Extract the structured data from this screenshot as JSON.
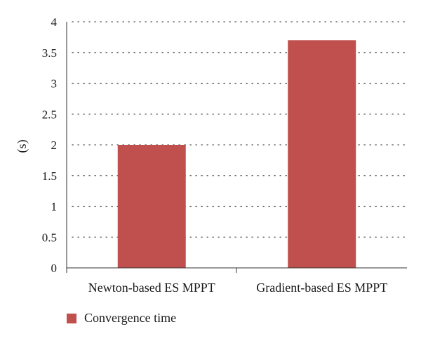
{
  "chart_data": {
    "type": "bar",
    "categories": [
      "Newton-based ES MPPT",
      "Gradient-based ES MPPT"
    ],
    "series": [
      {
        "name": "Convergence time",
        "values": [
          2.0,
          3.7
        ],
        "color": "#c0504d"
      }
    ],
    "title": "",
    "xlabel": "",
    "ylabel": "(s)",
    "ylim": [
      0,
      4
    ],
    "yticks": [
      0,
      0.5,
      1,
      1.5,
      2,
      2.5,
      3,
      3.5,
      4
    ],
    "ytick_labels": [
      "0",
      "0.5",
      "1",
      "1.5",
      "2",
      "2.5",
      "3",
      "3.5",
      "4"
    ],
    "grid": true,
    "legend": {
      "position": "bottom-left"
    }
  }
}
